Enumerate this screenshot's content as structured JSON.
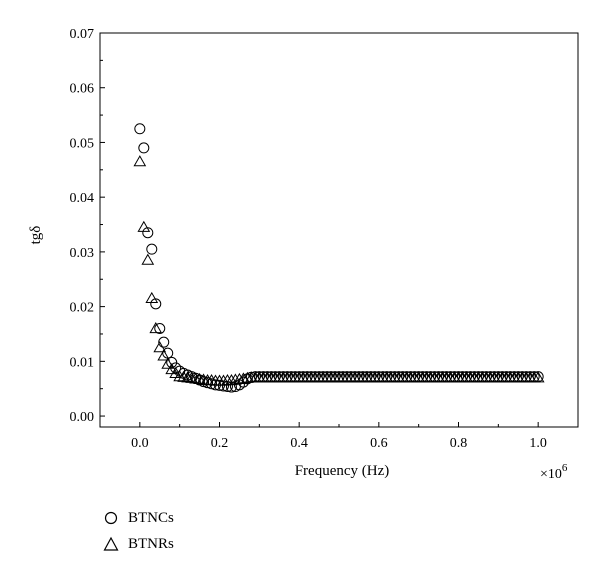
{
  "chart_data": {
    "type": "scatter",
    "xlabel": "Frequency (Hz)",
    "ylabel": "tgδ",
    "x_multiplier_label": "×10",
    "x_multiplier_exp": "6",
    "xlim": [
      -0.1,
      1.1
    ],
    "ylim": [
      -0.002,
      0.07
    ],
    "x_ticks": [
      0.0,
      0.2,
      0.4,
      0.6,
      0.8,
      1.0
    ],
    "x_tick_labels": [
      "0.0",
      "0.2",
      "0.4",
      "0.6",
      "0.8",
      "1.0"
    ],
    "y_ticks": [
      0.0,
      0.01,
      0.02,
      0.03,
      0.04,
      0.05,
      0.06,
      0.07
    ],
    "y_tick_labels": [
      "0.00",
      "0.01",
      "0.02",
      "0.03",
      "0.04",
      "0.05",
      "0.06",
      "0.07"
    ],
    "grid": false,
    "legend_position": "below-left",
    "series": [
      {
        "name": "BTNCs",
        "marker": "circle",
        "head_points": [
          [
            0.0,
            0.0525
          ],
          [
            0.01,
            0.049
          ],
          [
            0.02,
            0.0335
          ],
          [
            0.03,
            0.0305
          ],
          [
            0.04,
            0.0205
          ],
          [
            0.05,
            0.016
          ],
          [
            0.06,
            0.0135
          ],
          [
            0.07,
            0.0115
          ],
          [
            0.08,
            0.0098
          ],
          [
            0.09,
            0.0088
          ],
          [
            0.1,
            0.0082
          ],
          [
            0.11,
            0.0078
          ],
          [
            0.12,
            0.0075
          ],
          [
            0.13,
            0.0072
          ],
          [
            0.14,
            0.0069
          ],
          [
            0.15,
            0.0066
          ],
          [
            0.16,
            0.0063
          ],
          [
            0.17,
            0.0061
          ],
          [
            0.18,
            0.0059
          ],
          [
            0.19,
            0.0057
          ],
          [
            0.2,
            0.0056
          ],
          [
            0.21,
            0.0055
          ],
          [
            0.22,
            0.0054
          ],
          [
            0.23,
            0.0053
          ],
          [
            0.24,
            0.0054
          ],
          [
            0.25,
            0.0057
          ],
          [
            0.26,
            0.0062
          ],
          [
            0.27,
            0.0068
          ],
          [
            0.28,
            0.0071
          ],
          [
            0.29,
            0.0072
          ]
        ],
        "plateau": {
          "from": 0.3,
          "to": 1.0,
          "step": 0.01,
          "value": 0.0072
        }
      },
      {
        "name": "BTNRs",
        "marker": "triangle",
        "head_points": [
          [
            0.0,
            0.0465
          ],
          [
            0.01,
            0.0345
          ],
          [
            0.02,
            0.0285
          ],
          [
            0.03,
            0.0215
          ],
          [
            0.04,
            0.016
          ],
          [
            0.05,
            0.0125
          ],
          [
            0.06,
            0.011
          ],
          [
            0.07,
            0.0095
          ],
          [
            0.08,
            0.0085
          ],
          [
            0.09,
            0.0078
          ],
          [
            0.1,
            0.0072
          ],
          [
            0.11,
            0.0071
          ],
          [
            0.12,
            0.007
          ],
          [
            0.13,
            0.0069
          ],
          [
            0.14,
            0.0068
          ],
          [
            0.15,
            0.0067
          ],
          [
            0.16,
            0.0066
          ],
          [
            0.17,
            0.0065
          ],
          [
            0.18,
            0.0065
          ],
          [
            0.19,
            0.0064
          ],
          [
            0.2,
            0.0064
          ],
          [
            0.21,
            0.0064
          ],
          [
            0.22,
            0.0065
          ],
          [
            0.23,
            0.0065
          ],
          [
            0.24,
            0.0066
          ],
          [
            0.25,
            0.0067
          ],
          [
            0.26,
            0.0068
          ],
          [
            0.27,
            0.0069
          ],
          [
            0.28,
            0.007
          ],
          [
            0.29,
            0.007
          ]
        ],
        "plateau": {
          "from": 0.3,
          "to": 1.0,
          "step": 0.01,
          "value": 0.007
        }
      }
    ]
  }
}
